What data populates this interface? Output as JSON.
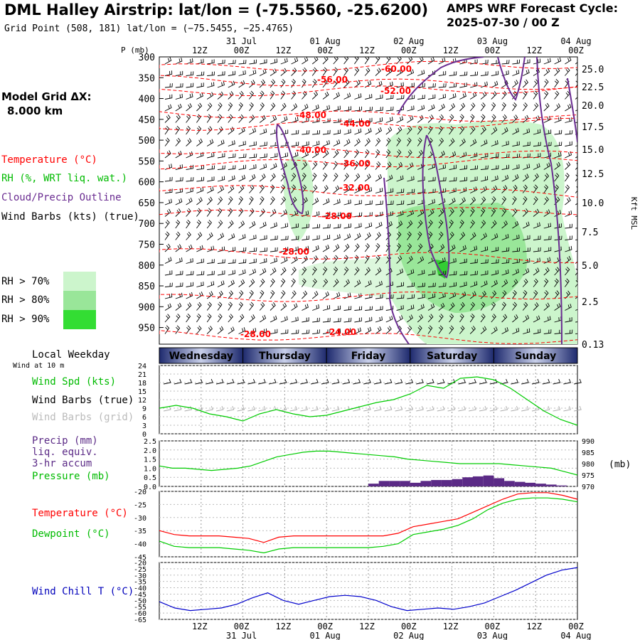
{
  "header": {
    "title": "DML Halley Airstrip:  lat/lon = (-75.5560, -25.6200)",
    "subtitle": "Grid Point (508, 181) lat/lon = (−75.5455, −25.4765)",
    "cycle_label": "AMPS WRF Forecast Cycle:",
    "cycle_value": "2025-07-30 / 00  Z"
  },
  "model_grid": {
    "label": "Model Grid ΔX:",
    "value": "8.000 km"
  },
  "legend": {
    "temperature": "Temperature (°C)",
    "rh": "RH (%, WRT liq. wat.)",
    "cloud": "Cloud/Precip Outline",
    "wind": "Wind Barbs (kts) (true)",
    "rh_bins": [
      {
        "label": "RH > 70%",
        "color": "#ccf5cc"
      },
      {
        "label": "RH > 80%",
        "color": "#99e699"
      },
      {
        "label": "RH > 90%",
        "color": "#33dd33"
      }
    ]
  },
  "colors": {
    "temperature": "#ff0000",
    "dewpoint": "#00cc00",
    "rh_line": "#00cc00",
    "cloud": "#6a2c91",
    "wind_chill": "#0000cc",
    "precip": "#5b2a86",
    "band_dark": "#1e2a6e",
    "band_light": "#aab4d6"
  },
  "time_axis": {
    "top_hours": [
      "12Z",
      "00Z",
      "12Z",
      "00Z",
      "12Z",
      "00Z",
      "12Z",
      "00Z",
      "12Z",
      "00Z"
    ],
    "top_dates": [
      "31 Jul",
      "01 Aug",
      "02 Aug",
      "03 Aug",
      "04 Aug"
    ],
    "bottom_hours": [
      "12Z",
      "00Z",
      "12Z",
      "00Z",
      "12Z",
      "00Z",
      "12Z",
      "00Z",
      "12Z",
      "00Z"
    ],
    "bottom_dates": [
      "31 Jul",
      "01 Aug",
      "02 Aug",
      "03 Aug",
      "04 Aug"
    ],
    "weekday_title": "Local Weekday",
    "weekdays": [
      "Wednesday",
      "Thursday",
      "Friday",
      "Saturday",
      "Sunday"
    ]
  },
  "chart_data": [
    {
      "type": "heatmap",
      "name": "cross-section",
      "ylabel_left": "P (mb)",
      "ylabel_right": "Kft MSL",
      "pressure_ticks": [
        300,
        350,
        400,
        450,
        500,
        550,
        600,
        650,
        700,
        750,
        800,
        850,
        900,
        950
      ],
      "height_ticks": [
        "25.0",
        "22.5",
        "20.0",
        "17.5",
        "15.0",
        "12.5",
        "10.0",
        "7.5",
        "5.0",
        "2.5",
        "0.13"
      ],
      "temperature_contours": [
        {
          "label": "-60.00",
          "p": 328
        },
        {
          "label": "-56.00",
          "p": 350
        },
        {
          "label": "-52.00",
          "p": 380
        },
        {
          "label": "-48.00",
          "p": 465
        },
        {
          "label": "-44.00",
          "p": 480
        },
        {
          "label": "-40.00",
          "p": 520
        },
        {
          "label": "-36.00",
          "p": 560
        },
        {
          "label": "-32.00",
          "p": 612
        },
        {
          "label": "-28.00",
          "p": 680
        },
        {
          "label": "-28.00",
          "p": 765
        },
        {
          "label": "-28.00",
          "p": 970
        },
        {
          "label": "-24.00",
          "p": 965
        }
      ]
    },
    {
      "type": "line",
      "name": "wind",
      "header": "Wind at 10 m",
      "label_speed": "Wind Spd (kts)",
      "label_barbs_true": "Wind Barbs (true)",
      "label_barbs_grid": "Wind Barbs (grid)",
      "ylim": [
        0,
        24
      ],
      "yticks": [
        0,
        3,
        6,
        9,
        12,
        15,
        18,
        21,
        24
      ],
      "x_hours": [
        0,
        6,
        12,
        18,
        24,
        30,
        36,
        42,
        48,
        54,
        60,
        66,
        72,
        78,
        84,
        90,
        96,
        102,
        108,
        114,
        120
      ],
      "speed": [
        9,
        10,
        9,
        7,
        6,
        4.5,
        7,
        8.5,
        7,
        6,
        6.5,
        8,
        9.5,
        11,
        12,
        14,
        17,
        16,
        19.5,
        20,
        19,
        16,
        12,
        8,
        5,
        3
      ]
    },
    {
      "type": "bar",
      "name": "precip-pressure",
      "label_precip": "Precip (mm)",
      "label_liq": "liq. equiv.",
      "label_accum": "3-hr accum",
      "label_pressure": "Pressure (mb)",
      "right_unit": "(mb)",
      "ylim_precip": [
        0,
        2.5
      ],
      "yticks_precip": [
        "0.0",
        "0.5",
        "1.0",
        "1.5",
        "2.0",
        "2.5"
      ],
      "ylim_pressure": [
        970,
        990
      ],
      "yticks_pressure": [
        "970",
        "975",
        "980",
        "985",
        "990"
      ],
      "pressure": [
        979,
        978,
        978,
        977.5,
        977,
        977.5,
        978,
        979,
        981,
        983,
        984,
        985,
        985.5,
        985.5,
        985,
        984.5,
        984,
        983.5,
        983,
        982,
        981.5,
        981,
        980.5,
        980,
        980,
        980,
        980,
        979.5,
        979,
        978.5,
        978,
        976.5,
        975
      ],
      "precip": [
        0,
        0,
        0,
        0,
        0,
        0,
        0,
        0,
        0,
        0,
        0,
        0,
        0,
        0,
        0,
        0,
        0,
        0,
        0,
        0,
        0.15,
        0.3,
        0.3,
        0.3,
        0.2,
        0.3,
        0.35,
        0.35,
        0.4,
        0.5,
        0.55,
        0.6,
        0.45,
        0.3,
        0.25,
        0.2,
        0.15,
        0.1,
        0.05,
        0
      ]
    },
    {
      "type": "line",
      "name": "temperature",
      "label_temp": "Temperature (°C)",
      "label_dew": "Dewpoint (°C)",
      "ylim": [
        -45,
        -20
      ],
      "yticks": [
        "-20",
        "-25",
        "-30",
        "-35",
        "-40",
        "-45"
      ],
      "temperature": [
        -35,
        -36.5,
        -37,
        -37,
        -37,
        -37.5,
        -38,
        -39.5,
        -37.5,
        -37,
        -37,
        -37,
        -37,
        -37,
        -37,
        -37,
        -36,
        -33.5,
        -32.5,
        -31.5,
        -30.5,
        -28,
        -25.5,
        -23,
        -21,
        -20.5,
        -20.5,
        -21.5,
        -23
      ],
      "dewpoint": [
        -39,
        -41,
        -41.5,
        -41.5,
        -41.5,
        -42,
        -42.5,
        -43.5,
        -42,
        -41.5,
        -41.5,
        -41.5,
        -41.5,
        -41.5,
        -41.5,
        -41,
        -40,
        -36.5,
        -35.5,
        -34.5,
        -33,
        -30.5,
        -27,
        -24.5,
        -23,
        -22.5,
        -22.5,
        -23,
        -24
      ]
    },
    {
      "type": "line",
      "name": "wind-chill",
      "label": "Wind Chill T (°C)",
      "ylim": [
        -65,
        -20
      ],
      "yticks": [
        "-20",
        "-25",
        "-30",
        "-35",
        "-40",
        "-45",
        "-50",
        "-55",
        "-60",
        "-65"
      ],
      "wind_chill": [
        -51,
        -56,
        -58,
        -57,
        -56,
        -53,
        -48,
        -44,
        -50,
        -53,
        -50,
        -47,
        -46,
        -47,
        -50,
        -55,
        -58,
        -57,
        -56,
        -57,
        -55,
        -52,
        -47,
        -42,
        -36,
        -30,
        -26,
        -24
      ]
    }
  ]
}
